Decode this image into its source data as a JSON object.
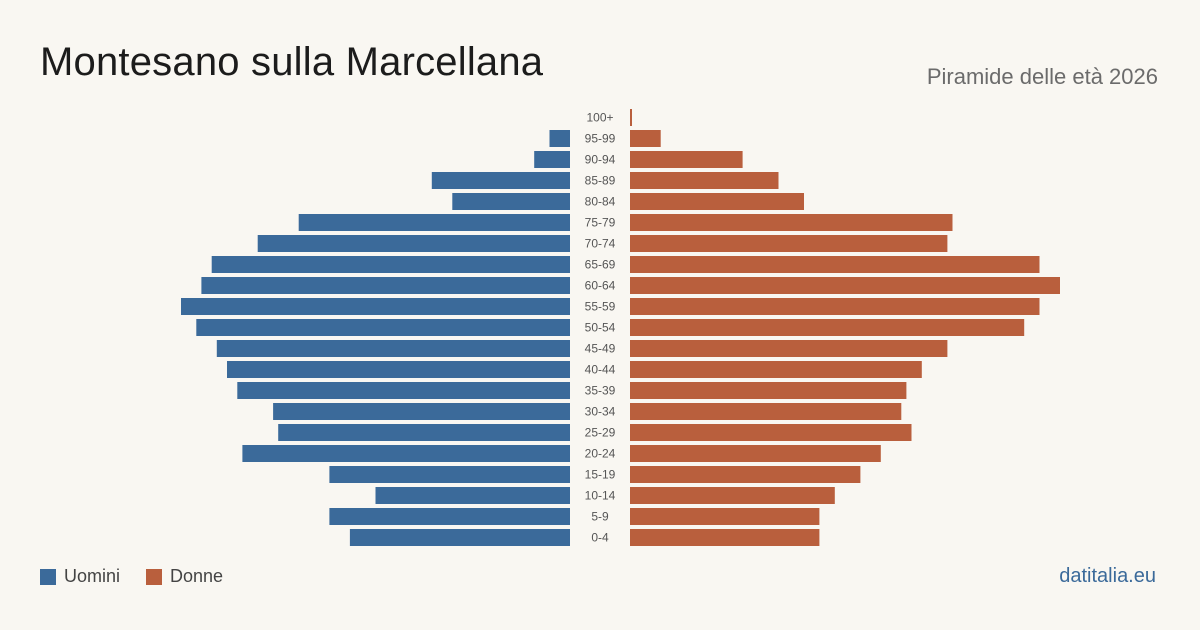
{
  "title": "Montesano sulla Marcellana",
  "subtitle": "Piramide delle età 2026",
  "source": "datitalia.eu",
  "colors": {
    "male": "#3b6a9a",
    "female": "#b95f3d",
    "label": "#555555",
    "background": "#f9f7f2"
  },
  "legend": {
    "male": "Uomini",
    "female": "Donne"
  },
  "chart_data": {
    "type": "bar",
    "orientation": "horizontal-pyramid",
    "categories": [
      "100+",
      "95-99",
      "90-94",
      "85-89",
      "80-84",
      "75-79",
      "70-74",
      "65-69",
      "60-64",
      "55-59",
      "50-54",
      "45-49",
      "40-44",
      "35-39",
      "30-34",
      "25-29",
      "20-24",
      "15-19",
      "10-14",
      "5-9",
      "0-4"
    ],
    "series": [
      {
        "name": "Uomini",
        "values": [
          0,
          4,
          7,
          27,
          23,
          53,
          61,
          70,
          72,
          76,
          73,
          69,
          67,
          65,
          58,
          57,
          64,
          47,
          38,
          47,
          43
        ]
      },
      {
        "name": "Donne",
        "values": [
          0.3,
          6,
          22,
          29,
          34,
          63,
          62,
          80,
          84,
          80,
          77,
          62,
          57,
          54,
          53,
          55,
          49,
          45,
          40,
          37,
          37
        ]
      }
    ],
    "xlim": [
      0,
      84
    ],
    "grid": false,
    "legend_position": "bottom-left"
  }
}
